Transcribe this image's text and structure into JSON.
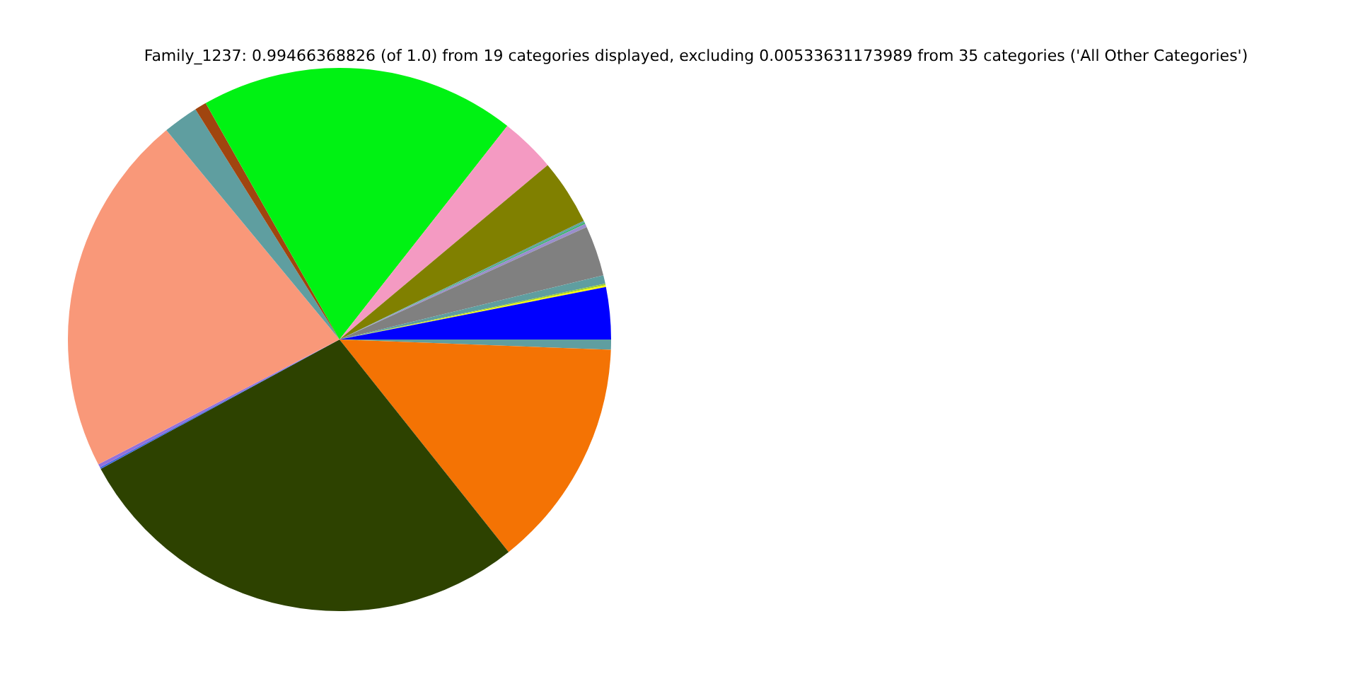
{
  "chart_data": {
    "type": "pie",
    "title": "Family_1237: 0.99466368826 (of 1.0) from 19 categories displayed, excluding 0.00533631173989 from 35 categories ('All Other Categories')",
    "categories": [
      null,
      null,
      null,
      null,
      null,
      null,
      null,
      null,
      null,
      null,
      null,
      null,
      null,
      null,
      null,
      null,
      null,
      null,
      null
    ],
    "values": [
      0.6,
      13.7,
      27.8,
      0.1,
      0.2,
      21.6,
      2.1,
      0.7,
      18.8,
      3.3,
      3.9,
      0.1,
      0.1,
      0.2,
      3.0,
      0.5,
      0.1,
      0.1,
      3.1
    ],
    "colors": [
      "#5f9ea0",
      "#f47304",
      "#2d4200",
      "#4169e1",
      "#9370db",
      "#f99879",
      "#5f9ea0",
      "#a0450f",
      "#00f213",
      "#f49ac2",
      "#808000",
      "#5f9ea0",
      "#3cb371",
      "#9a8ecd",
      "#808080",
      "#5f9ea0",
      "#9acd32",
      "#ffff00",
      "#0000ff"
    ]
  }
}
